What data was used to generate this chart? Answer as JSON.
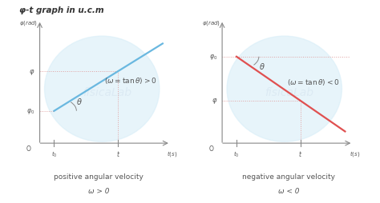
{
  "title": "φ-t graph in u.c.m",
  "title_fontsize": 7.5,
  "background_color": "#ffffff",
  "left_graph": {
    "line_color": "#6ab8e0",
    "label1": "positive angular velocity",
    "label2": "ω > 0",
    "bg_circle_color": "#d8eef8"
  },
  "right_graph": {
    "line_color": "#e05050",
    "label1": "negative angular velocity",
    "label2": "ω < 0",
    "bg_circle_color": "#d8eef8"
  },
  "axis_color": "#888888",
  "dashed_color": "#e0a0a0",
  "text_color": "#555555",
  "annot_fontsize": 6.5,
  "label_fontsize": 6.5,
  "tick_fontsize": 5.5,
  "ylabel_fontsize": 5.5,
  "watermark_color": "#c8d8e8",
  "watermark_alpha": 0.35
}
